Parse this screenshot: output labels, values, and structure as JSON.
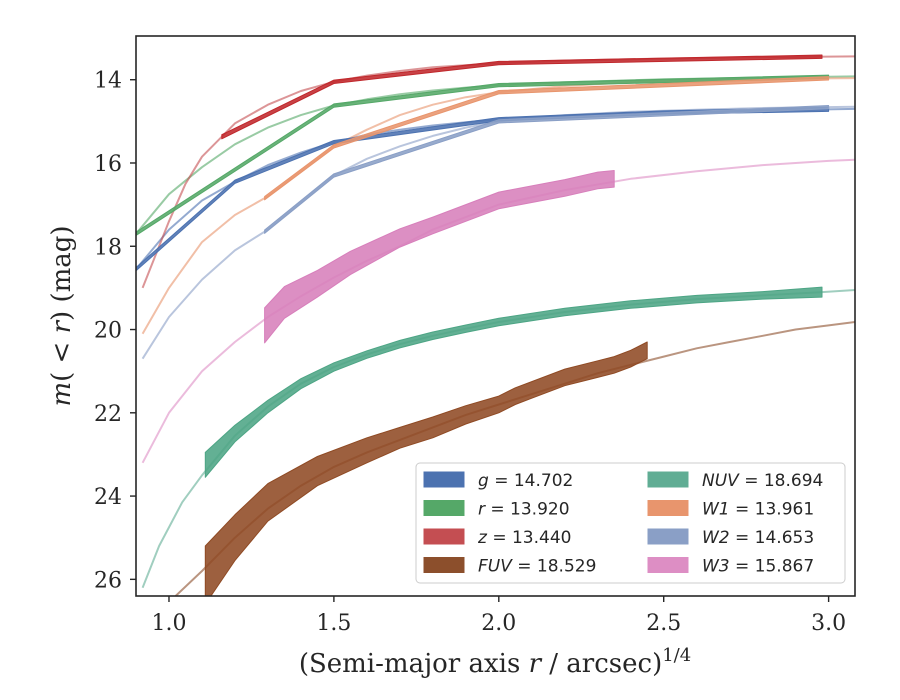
{
  "chart_data": {
    "type": "line",
    "title": "",
    "xlabel_main": "(Semi-major axis ",
    "xlabel_var": "r",
    "xlabel_unit": " / arcsec)",
    "xlabel_sup": "1/4",
    "ylabel_main": "m",
    "ylabel_arg": "( < ",
    "ylabel_var": "r",
    "ylabel_unit": ") (mag)",
    "xlim": [
      0.9,
      3.08
    ],
    "ylim": [
      26.4,
      12.95
    ],
    "y_inverted": true,
    "x_ticks": [
      1.0,
      1.5,
      2.0,
      2.5,
      3.0
    ],
    "x_tick_labels": [
      "1.0",
      "1.5",
      "2.0",
      "2.5",
      "3.0"
    ],
    "y_ticks": [
      14,
      16,
      18,
      20,
      22,
      24,
      26
    ],
    "y_tick_labels": [
      "14",
      "16",
      "18",
      "20",
      "22",
      "24",
      "26"
    ],
    "legend_position": "lower-right",
    "series": [
      {
        "key": "g",
        "label": "g = 14.702",
        "color": "#4c72b0",
        "x": [
          0.9,
          1.0,
          1.1,
          1.2,
          1.3,
          1.4,
          1.5,
          1.6,
          1.7,
          1.8,
          1.9,
          2.0,
          2.2,
          2.5,
          2.8,
          3.08
        ],
        "y": [
          18.55,
          17.6,
          16.9,
          16.45,
          16.05,
          15.75,
          15.5,
          15.32,
          15.2,
          15.1,
          15.02,
          14.95,
          14.87,
          14.79,
          14.74,
          14.7
        ],
        "band_x": [
          0.9,
          1.2,
          1.5,
          2.0,
          2.5,
          3.0
        ],
        "band_hw": [
          0.04,
          0.04,
          0.04,
          0.04,
          0.04,
          0.05
        ]
      },
      {
        "key": "r",
        "label": "r = 13.920",
        "color": "#55a868",
        "x": [
          0.9,
          1.0,
          1.1,
          1.2,
          1.3,
          1.4,
          1.5,
          1.6,
          1.7,
          1.8,
          1.9,
          2.0,
          2.2,
          2.5,
          2.8,
          3.08
        ],
        "y": [
          17.7,
          16.75,
          16.1,
          15.55,
          15.15,
          14.85,
          14.62,
          14.47,
          14.35,
          14.26,
          14.19,
          14.13,
          14.06,
          13.99,
          13.95,
          13.92
        ],
        "band_x": [
          0.9,
          1.5,
          2.0,
          3.0
        ],
        "band_hw": [
          0.04,
          0.04,
          0.04,
          0.04
        ]
      },
      {
        "key": "z",
        "label": "z = 13.440",
        "color": "#c44e52",
        "x": [
          0.92,
          1.0,
          1.05,
          1.1,
          1.15,
          1.2,
          1.3,
          1.4,
          1.5,
          1.6,
          1.7,
          1.8,
          2.0,
          2.2,
          2.5,
          2.8,
          3.08
        ],
        "y": [
          19.0,
          17.4,
          16.5,
          15.85,
          15.45,
          15.05,
          14.6,
          14.27,
          14.05,
          13.9,
          13.79,
          13.7,
          13.6,
          13.54,
          13.49,
          13.46,
          13.44
        ],
        "band_x": [
          1.16,
          1.5,
          2.0,
          2.98
        ],
        "band_hw": [
          0.05,
          0.04,
          0.04,
          0.04
        ],
        "band_color": "#c0282c"
      },
      {
        "key": "FUV",
        "label": "FUV = 18.529",
        "color": "#8c4f2c",
        "x": [
          1.02,
          1.1,
          1.2,
          1.3,
          1.4,
          1.5,
          1.6,
          1.7,
          1.8,
          1.9,
          2.0,
          2.1,
          2.2,
          2.3,
          2.4,
          2.5,
          2.6,
          2.7,
          2.8,
          2.9,
          3.0,
          3.08
        ],
        "y": [
          26.4,
          25.8,
          25.0,
          24.3,
          23.75,
          23.3,
          22.95,
          22.65,
          22.35,
          22.05,
          21.8,
          21.55,
          21.3,
          21.05,
          20.85,
          20.65,
          20.45,
          20.3,
          20.15,
          20.0,
          19.9,
          19.82
        ],
        "band_x": [
          1.11,
          1.2,
          1.3,
          1.45,
          1.6,
          1.7,
          1.8,
          1.9,
          2.0,
          2.05,
          2.1,
          2.2,
          2.3,
          2.35,
          2.4,
          2.45
        ],
        "band_y": [
          25.9,
          25.0,
          24.15,
          23.4,
          22.9,
          22.6,
          22.35,
          22.05,
          21.8,
          21.6,
          21.45,
          21.15,
          20.95,
          20.85,
          20.7,
          20.5
        ],
        "band_hw": [
          0.7,
          0.55,
          0.45,
          0.35,
          0.3,
          0.25,
          0.25,
          0.22,
          0.2,
          0.2,
          0.2,
          0.2,
          0.2,
          0.2,
          0.2,
          0.2
        ],
        "band_color": "#8f4a24"
      },
      {
        "key": "NUV",
        "label": "NUV = 18.694",
        "color": "#60ad94",
        "x": [
          0.92,
          0.97,
          1.04,
          1.1,
          1.2,
          1.3,
          1.4,
          1.5,
          1.6,
          1.7,
          1.8,
          1.9,
          2.0,
          2.2,
          2.4,
          2.6,
          2.8,
          2.98,
          3.08
        ],
        "y": [
          26.2,
          25.2,
          24.15,
          23.5,
          22.55,
          21.85,
          21.3,
          20.9,
          20.6,
          20.35,
          20.15,
          19.98,
          19.82,
          19.58,
          19.4,
          19.27,
          19.18,
          19.1,
          19.05
        ],
        "band_x": [
          1.11,
          1.2,
          1.3,
          1.4,
          1.5,
          1.6,
          1.7,
          1.8,
          1.9,
          2.0,
          2.2,
          2.4,
          2.6,
          2.8,
          2.98
        ],
        "band_y": [
          23.25,
          22.5,
          21.85,
          21.3,
          20.9,
          20.6,
          20.35,
          20.15,
          19.98,
          19.82,
          19.58,
          19.4,
          19.27,
          19.18,
          19.1
        ],
        "band_hw": [
          0.3,
          0.2,
          0.15,
          0.12,
          0.1,
          0.09,
          0.09,
          0.09,
          0.09,
          0.09,
          0.09,
          0.09,
          0.09,
          0.09,
          0.12
        ],
        "band_color": "#4da585"
      },
      {
        "key": "W1",
        "label": "W1 = 13.961",
        "color": "#e8956d",
        "x": [
          0.92,
          1.0,
          1.1,
          1.2,
          1.3,
          1.4,
          1.5,
          1.6,
          1.7,
          1.8,
          1.9,
          2.0,
          2.2,
          2.4,
          2.6,
          2.8,
          3.08
        ],
        "y": [
          20.1,
          19.0,
          17.9,
          17.25,
          16.8,
          16.2,
          15.6,
          15.2,
          14.85,
          14.6,
          14.42,
          14.3,
          14.15,
          14.06,
          14.01,
          13.98,
          13.96
        ],
        "band_x": [
          1.29,
          1.5,
          2.0,
          3.0
        ],
        "band_hw": [
          0.04,
          0.04,
          0.04,
          0.04
        ]
      },
      {
        "key": "W2",
        "label": "W2 = 14.653",
        "color": "#8a9fc6",
        "x": [
          0.92,
          1.0,
          1.1,
          1.2,
          1.3,
          1.4,
          1.5,
          1.6,
          1.7,
          1.8,
          1.9,
          2.0,
          2.2,
          2.4,
          2.6,
          2.8,
          3.08
        ],
        "y": [
          20.7,
          19.7,
          18.8,
          18.1,
          17.6,
          16.95,
          16.3,
          15.9,
          15.6,
          15.35,
          15.15,
          15.0,
          14.85,
          14.77,
          14.72,
          14.68,
          14.65
        ],
        "band_x": [
          1.29,
          1.5,
          2.0,
          3.0
        ],
        "band_hw": [
          0.04,
          0.04,
          0.04,
          0.04
        ]
      },
      {
        "key": "W3",
        "label": "W3 = 15.867",
        "color": "#dd8ec4",
        "x": [
          0.92,
          1.0,
          1.1,
          1.2,
          1.3,
          1.4,
          1.5,
          1.6,
          1.7,
          1.8,
          1.9,
          2.0,
          2.2,
          2.4,
          2.6,
          2.8,
          3.0,
          3.08
        ],
        "y": [
          23.2,
          22.0,
          21.0,
          20.3,
          19.7,
          19.2,
          18.75,
          18.35,
          18.0,
          17.6,
          17.3,
          17.0,
          16.65,
          16.38,
          16.2,
          16.05,
          15.95,
          15.92
        ],
        "band_x": [
          1.29,
          1.35,
          1.45,
          1.55,
          1.7,
          1.8,
          1.9,
          2.0,
          2.1,
          2.2,
          2.3,
          2.35
        ],
        "band_y": [
          19.9,
          19.35,
          18.9,
          18.4,
          17.8,
          17.5,
          17.2,
          16.9,
          16.75,
          16.6,
          16.42,
          16.38
        ],
        "band_hw": [
          0.42,
          0.38,
          0.32,
          0.28,
          0.22,
          0.2,
          0.2,
          0.2,
          0.2,
          0.2,
          0.2,
          0.2
        ],
        "band_color": "#d77fbb"
      }
    ],
    "legend": {
      "columns": [
        [
          {
            "key": "g",
            "label_var": "g",
            "label_value": " = 14.702",
            "color": "#4c72b0"
          },
          {
            "key": "r",
            "label_var": "r",
            "label_value": " = 13.920",
            "color": "#55a868"
          },
          {
            "key": "z",
            "label_var": "z",
            "label_value": " = 13.440",
            "color": "#c44e52"
          },
          {
            "key": "FUV",
            "label_var": "FUV",
            "label_value": " = 18.529",
            "color": "#8c4f2c"
          }
        ],
        [
          {
            "key": "NUV",
            "label_var": "NUV",
            "label_value": " = 18.694",
            "color": "#60ad94"
          },
          {
            "key": "W1",
            "label_var": "W1",
            "label_value": " = 13.961",
            "color": "#e8956d"
          },
          {
            "key": "W2",
            "label_var": "W2",
            "label_value": " = 14.653",
            "color": "#8a9fc6"
          },
          {
            "key": "W3",
            "label_var": "W3",
            "label_value": " = 15.867",
            "color": "#dd8ec4"
          }
        ]
      ]
    }
  }
}
